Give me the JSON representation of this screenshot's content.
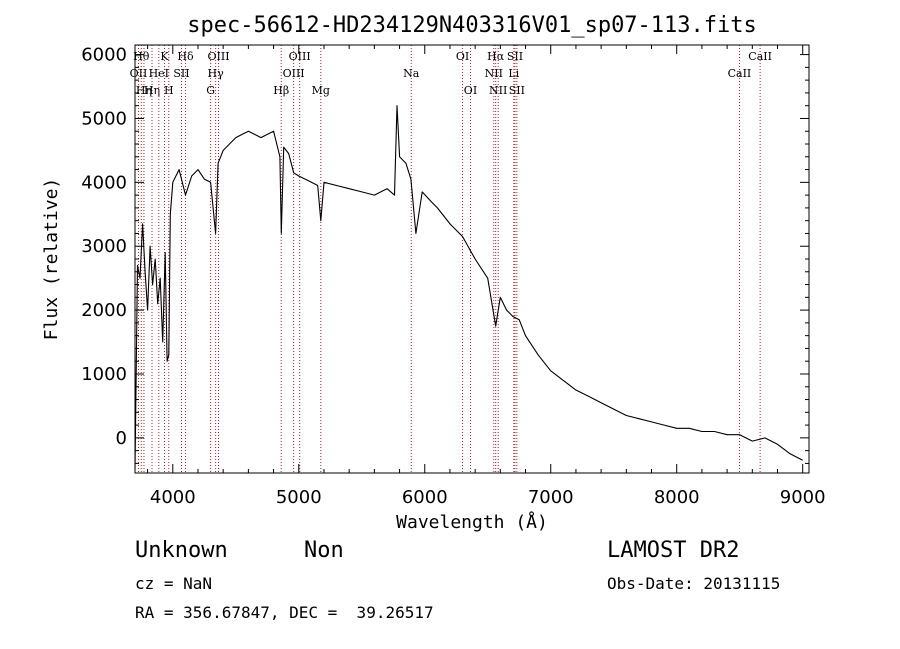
{
  "chart_data": {
    "type": "line",
    "title": "spec-56612-HD234129N403316V01_sp07-113.fits",
    "xlabel": "Wavelength (Å)",
    "ylabel": "Flux (relative)",
    "xlim": [
      3700,
      9050
    ],
    "ylim": [
      -550,
      6150
    ],
    "xticks": [
      4000,
      5000,
      6000,
      7000,
      8000,
      9000
    ],
    "yticks": [
      0,
      1000,
      2000,
      3000,
      4000,
      5000,
      6000
    ],
    "grid": false,
    "series": [
      {
        "x": [
          3700,
          3720,
          3740,
          3760,
          3780,
          3800,
          3820,
          3840,
          3860,
          3880,
          3900,
          3920,
          3940,
          3955,
          3968,
          3980,
          4000,
          4050,
          4101,
          4150,
          4200,
          4250,
          4300,
          4340,
          4360,
          4400,
          4450,
          4500,
          4550,
          4600,
          4650,
          4700,
          4750,
          4800,
          4850,
          4861,
          4880,
          4920,
          4960,
          5000,
          5050,
          5100,
          5150,
          5175,
          5200,
          5300,
          5400,
          5500,
          5600,
          5700,
          5760,
          5780,
          5800,
          5850,
          5890,
          5930,
          5980,
          6050,
          6100,
          6200,
          6300,
          6400,
          6500,
          6563,
          6600,
          6650,
          6700,
          6750,
          6800,
          6900,
          7000,
          7100,
          7200,
          7300,
          7400,
          7500,
          7600,
          7700,
          7800,
          7900,
          8000,
          8100,
          8200,
          8300,
          8400,
          8500,
          8600,
          8700,
          8800,
          8900,
          9000
        ],
        "y": [
          -500,
          2700,
          2500,
          3350,
          2600,
          2000,
          3000,
          2400,
          2800,
          2100,
          2500,
          1500,
          2900,
          1200,
          1300,
          3500,
          4000,
          4200,
          3800,
          4100,
          4200,
          4050,
          4000,
          3200,
          4300,
          4500,
          4600,
          4700,
          4750,
          4800,
          4750,
          4700,
          4750,
          4800,
          4400,
          3200,
          4550,
          4450,
          4150,
          4100,
          4050,
          4000,
          3950,
          3400,
          4000,
          3950,
          3900,
          3850,
          3800,
          3900,
          3800,
          5200,
          4400,
          4300,
          4050,
          3200,
          3850,
          3700,
          3600,
          3350,
          3150,
          2800,
          2500,
          1750,
          2200,
          2000,
          1900,
          1850,
          1600,
          1300,
          1050,
          900,
          750,
          650,
          550,
          450,
          350,
          300,
          250,
          200,
          150,
          150,
          100,
          100,
          50,
          50,
          -50,
          0,
          -100,
          -250,
          -350
        ]
      }
    ],
    "lines": {
      "color": "#b22222",
      "items": [
        {
          "x": 3750,
          "label": "Hθ",
          "row": 1
        },
        {
          "x": 3728,
          "label": "OII",
          "row": 2
        },
        {
          "x": 3771,
          "label": "Hη",
          "row": 3
        },
        {
          "x": 3835,
          "label": "Hη",
          "row": 3
        },
        {
          "x": 3889,
          "label": "HeI",
          "row": 2
        },
        {
          "x": 3934,
          "label": "K",
          "row": 1
        },
        {
          "x": 3968,
          "label": "H",
          "row": 3
        },
        {
          "x": 4069,
          "label": "SII",
          "row": 2
        },
        {
          "x": 4101,
          "label": "Hδ",
          "row": 1
        },
        {
          "x": 4300,
          "label": "G",
          "row": 3
        },
        {
          "x": 4340,
          "label": "Hγ",
          "row": 2
        },
        {
          "x": 4363,
          "label": "OIII",
          "row": 1
        },
        {
          "x": 4861,
          "label": "Hβ",
          "row": 3
        },
        {
          "x": 4959,
          "label": "OIII",
          "row": 2
        },
        {
          "x": 5007,
          "label": "OIII",
          "row": 1
        },
        {
          "x": 5175,
          "label": "Mg",
          "row": 3
        },
        {
          "x": 5893,
          "label": "Na",
          "row": 2
        },
        {
          "x": 6300,
          "label": "OI",
          "row": 1
        },
        {
          "x": 6363,
          "label": "OI",
          "row": 3
        },
        {
          "x": 6548,
          "label": "NII",
          "row": 2
        },
        {
          "x": 6563,
          "label": "Hα",
          "row": 1
        },
        {
          "x": 6583,
          "label": "NII",
          "row": 3
        },
        {
          "x": 6707,
          "label": "Li",
          "row": 2
        },
        {
          "x": 6716,
          "label": "SII",
          "row": 1
        },
        {
          "x": 6731,
          "label": "SII",
          "row": 3
        },
        {
          "x": 8498,
          "label": "CaII",
          "row": 2
        },
        {
          "x": 8662,
          "label": "CaII",
          "row": 1
        }
      ]
    }
  },
  "footer": {
    "object_name": "Unknown",
    "class_name": "Non",
    "survey": "LAMOST DR2",
    "cz": "cz = NaN",
    "obs_date": "Obs-Date: 20131115",
    "coords": "RA = 356.67847, DEC =  39.26517"
  }
}
